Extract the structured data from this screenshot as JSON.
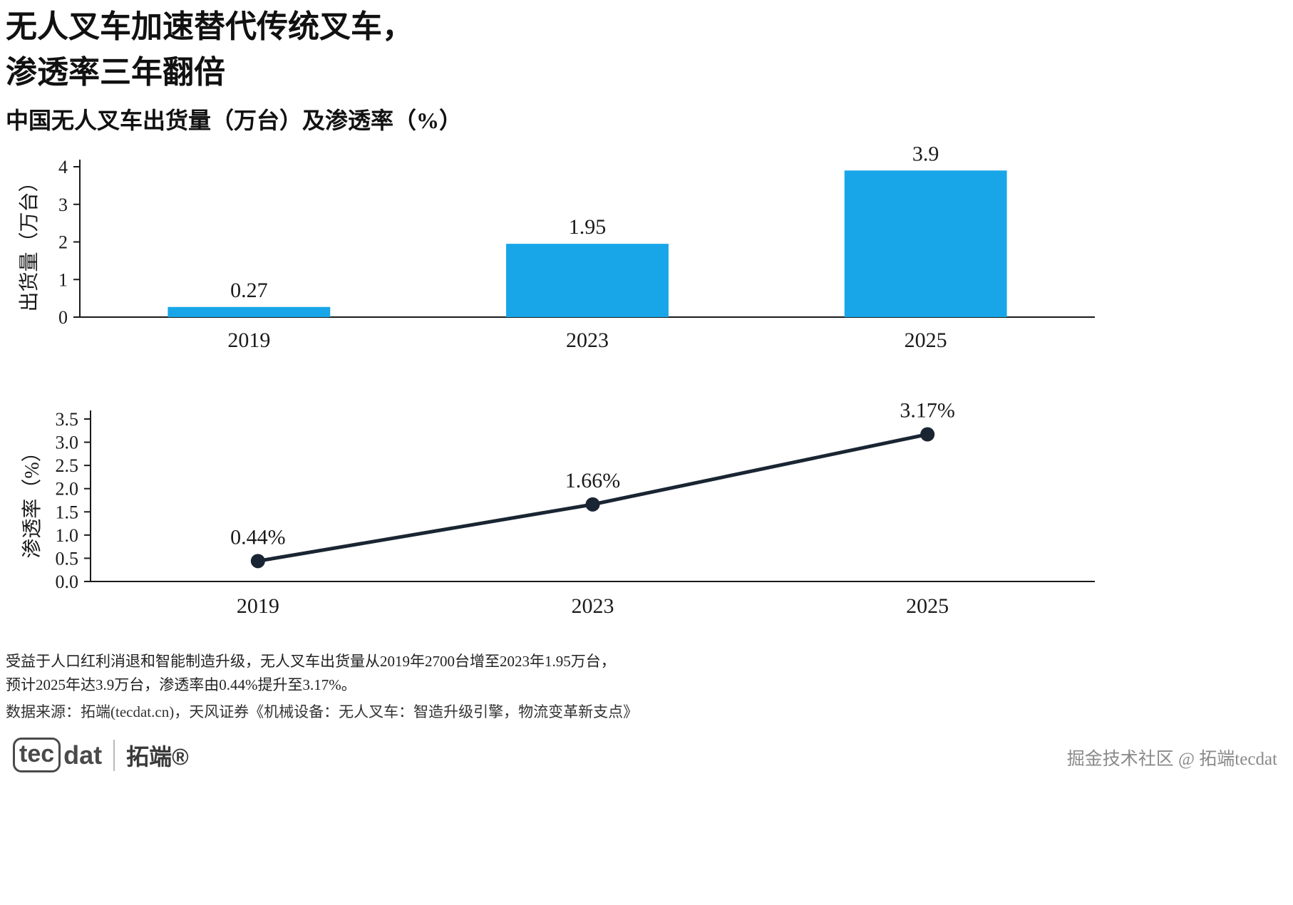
{
  "page": {
    "title_line1": "无人叉车加速替代传统叉车，",
    "title_line2": "渗透率三年翻倍",
    "subtitle": "中国无人叉车出货量（万台）及渗透率（%）"
  },
  "chart_data": [
    {
      "type": "bar",
      "title": "中国无人叉车出货量（万台）",
      "categories": [
        "2019",
        "2023",
        "2025"
      ],
      "values": [
        0.27,
        1.95,
        3.9
      ],
      "labels": [
        "0.27",
        "1.95",
        "3.9"
      ],
      "ylabel": "出货量（万台）",
      "ylim": [
        0,
        4
      ],
      "yticks": [
        0,
        1,
        2,
        3,
        4
      ],
      "ytick_labels": [
        "0",
        "1",
        "2",
        "3",
        "4"
      ],
      "bar_color": "#18a6e8",
      "grid": false,
      "legend": "none"
    },
    {
      "type": "line",
      "title": "中国无人叉车渗透率（%）",
      "categories": [
        "2019",
        "2023",
        "2025"
      ],
      "values": [
        0.44,
        1.66,
        3.17
      ],
      "labels": [
        "0.44%",
        "1.66%",
        "3.17%"
      ],
      "ylabel": "渗透率（%）",
      "ylim": [
        0,
        3.5
      ],
      "yticks": [
        0.0,
        0.5,
        1.0,
        1.5,
        2.0,
        2.5,
        3.0,
        3.5
      ],
      "ytick_labels": [
        "0.0",
        "0.5",
        "1.0",
        "1.5",
        "2.0",
        "2.5",
        "3.0",
        "3.5"
      ],
      "line_color": "#1a2533",
      "grid": false,
      "legend": "none"
    }
  ],
  "footer": {
    "note_line1": "受益于人口红利消退和智能制造升级，无人叉车出货量从2019年2700台增至2023年1.95万台，",
    "note_line2": "预计2025年达3.9万台，渗透率由0.44%提升至3.17%。",
    "source": "数据来源：拓端(tecdat.cn)，天风证券《机械设备：无人叉车：智造升级引擎，物流变革新支点》"
  },
  "branding": {
    "logo_tec": "tec",
    "logo_dat": "dat",
    "logo_cn": "拓端®",
    "community": "掘金技术社区 @ 拓端tecdat"
  }
}
